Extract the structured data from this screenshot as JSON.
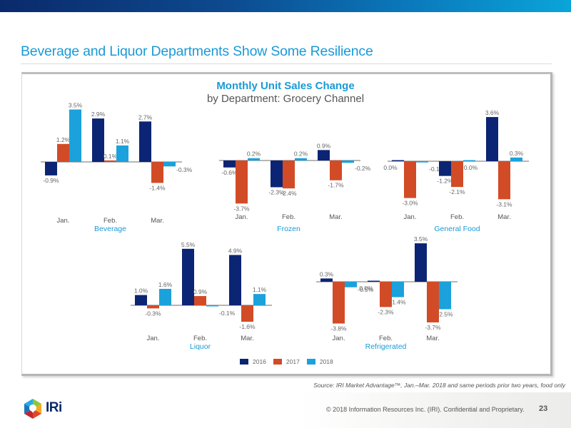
{
  "slide": {
    "title": "Beverage and Liquor Departments Show Some Resilience",
    "source": "Source: IRI Market Advantage™, Jan.–Mar. 2018 and same periods prior two years, food only",
    "copyright": "© 2018 Information Resources Inc. (IRI). Confidential and Proprietary.",
    "page_number": "23",
    "logo_text": "IRi"
  },
  "colors": {
    "2016": "#0c2474",
    "2017": "#d24b27",
    "2018": "#1ba1dc",
    "accent": "#1a9ad6"
  },
  "chart_data": {
    "type": "bar",
    "title": "Monthly Unit Sales Change",
    "subtitle": "by Department: Grocery Channel",
    "categories": [
      "Jan.",
      "Feb.",
      "Mar."
    ],
    "legend": [
      "2016",
      "2017",
      "2018"
    ],
    "legend_position": "bottom-left",
    "unit": "%",
    "panels": [
      {
        "department": "Beverage",
        "series": [
          {
            "name": "2016",
            "values": [
              -0.9,
              2.9,
              2.7
            ]
          },
          {
            "name": "2017",
            "values": [
              1.2,
              0.1,
              -1.4
            ]
          },
          {
            "name": "2018",
            "values": [
              3.5,
              1.1,
              -0.3
            ]
          }
        ]
      },
      {
        "department": "Frozen",
        "series": [
          {
            "name": "2016",
            "values": [
              -0.6,
              -2.3,
              0.9
            ]
          },
          {
            "name": "2017",
            "values": [
              -3.7,
              -2.4,
              -1.7
            ]
          },
          {
            "name": "2018",
            "values": [
              0.2,
              0.2,
              -0.2
            ]
          }
        ]
      },
      {
        "department": "General Food",
        "series": [
          {
            "name": "2016",
            "values": [
              0.0,
              -1.2,
              3.6
            ]
          },
          {
            "name": "2017",
            "values": [
              -3.0,
              -2.1,
              -3.1
            ]
          },
          {
            "name": "2018",
            "values": [
              -0.1,
              0.0,
              0.3
            ]
          }
        ]
      },
      {
        "department": "Liquor",
        "series": [
          {
            "name": "2016",
            "values": [
              1.0,
              5.5,
              4.9
            ]
          },
          {
            "name": "2017",
            "values": [
              -0.3,
              0.9,
              -1.6
            ]
          },
          {
            "name": "2018",
            "values": [
              1.6,
              -0.1,
              1.1
            ]
          }
        ]
      },
      {
        "department": "Refrigerated",
        "series": [
          {
            "name": "2016",
            "values": [
              0.3,
              0.0,
              3.5
            ]
          },
          {
            "name": "2017",
            "values": [
              -3.8,
              -2.3,
              -3.7
            ]
          },
          {
            "name": "2018",
            "values": [
              -0.5,
              -1.4,
              -2.5
            ]
          }
        ]
      }
    ]
  }
}
